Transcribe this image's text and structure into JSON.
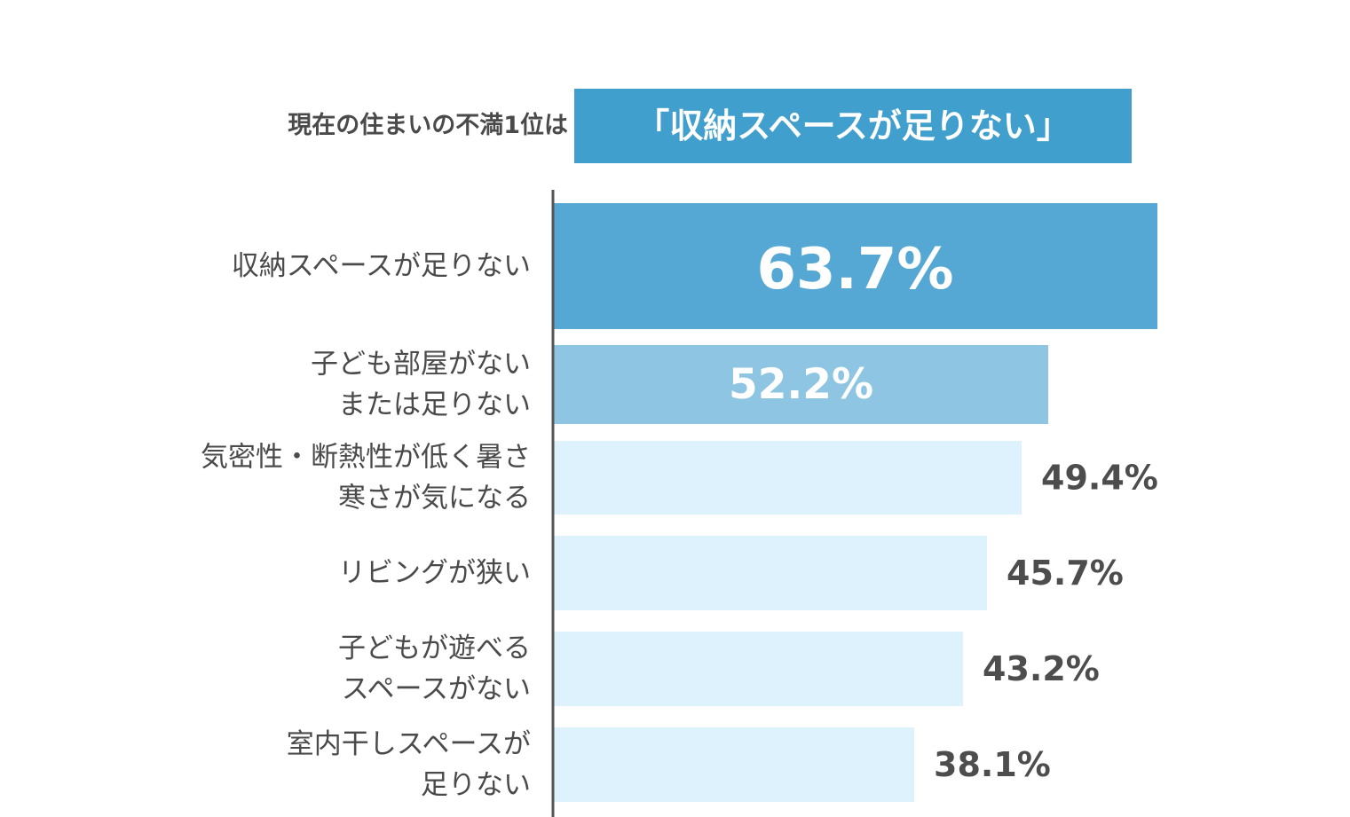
{
  "header": {
    "prefix": "現在の住まいの不満1位は",
    "highlight": "「収納スペースが足りない」"
  },
  "colors": {
    "header_box": "#419fcd",
    "bar_top": "#55a8d3",
    "bar_second": "#8ec5e2",
    "bar_rest": "#ddf2fc",
    "value_dark": "#4d4d4d",
    "value_light": "#ffffff",
    "axis": "#555555"
  },
  "chart_data": {
    "type": "bar",
    "orientation": "horizontal",
    "unit": "%",
    "xlim": [
      0,
      63.7
    ],
    "categories": [
      [
        "収納スペースが足りない"
      ],
      [
        "子ども部屋がない",
        "または足りない"
      ],
      [
        "気密性・断熱性が低く暑さ",
        "寒さが気になる"
      ],
      [
        "リビングが狭い"
      ],
      [
        "子どもが遊べる",
        "スペースがない"
      ],
      [
        "室内干しスペースが",
        "足りない"
      ]
    ],
    "values": [
      63.7,
      52.2,
      49.4,
      45.7,
      43.2,
      38.1
    ],
    "value_labels": [
      "63.7%",
      "52.2%",
      "49.4%",
      "45.7%",
      "43.2%",
      "38.1%"
    ]
  }
}
